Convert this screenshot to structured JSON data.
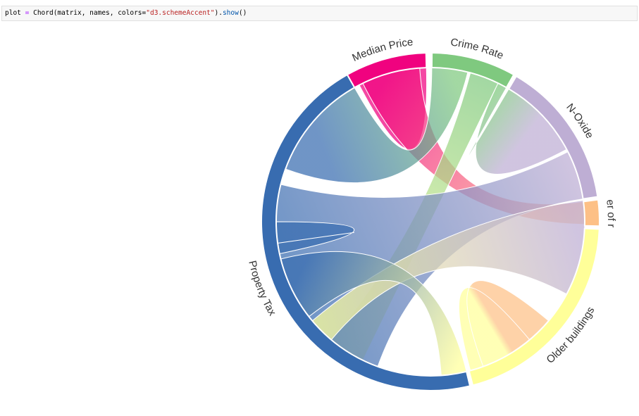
{
  "code_cell": {
    "var": "plot",
    "op": "=",
    "call": "Chord(matrix, names, colors=",
    "string": "\"d3.schemeAccent\"",
    "close": ")",
    "dot": ".",
    "method": "show",
    "tail": "()"
  },
  "chart_data": {
    "type": "chord",
    "names": [
      "Median Price",
      "Crime Rate",
      "N-Oxide",
      "Number of rooms",
      "Older buildings",
      "Property Tax"
    ],
    "colors": [
      "#f0027f",
      "#7fc97f",
      "#beaed4",
      "#fdc086",
      "#ffff99",
      "#386cb0"
    ],
    "groups_start_deg": [
      -29.5,
      0.5,
      30.5,
      82.5,
      92.5,
      166.5
    ],
    "groups_end_deg": [
      -1.5,
      29.5,
      81.5,
      91.5,
      165.5,
      330.5
    ],
    "ribbons": [
      {
        "source": "Median Price",
        "target": "Median Price",
        "s_deg": [
          -27.5,
          -1.5
        ],
        "t_deg": [
          -27.5,
          -1.5
        ]
      },
      {
        "source": "Median Price",
        "target": "Number of rooms",
        "s_deg": [
          -26,
          -4
        ],
        "t_deg": [
          82.5,
          91
        ]
      },
      {
        "source": "Crime Rate",
        "target": "Property Tax",
        "s_deg": [
          0.5,
          14
        ],
        "t_deg": [
          290,
          330.5
        ]
      },
      {
        "source": "Crime Rate",
        "target": "Older buildings",
        "s_deg": [
          15,
          26
        ],
        "t_deg": [
          206,
          220
        ]
      },
      {
        "source": "Crime Rate",
        "target": "N-Oxide",
        "s_deg": [
          26,
          29.5
        ],
        "t_deg": [
          30.5,
          62
        ]
      },
      {
        "source": "N-Oxide",
        "target": "Property Tax",
        "s_deg": [
          63,
          81.5
        ],
        "t_deg": [
          200,
          284
        ]
      },
      {
        "source": "N-Oxide",
        "target": "Older buildings",
        "s_deg": [
          82,
          118
        ],
        "t_deg": [
          220,
          230
        ]
      },
      {
        "source": "Number of rooms",
        "target": "Older buildings",
        "s_deg": [
          130,
          165
        ],
        "t_deg": [
          140,
          160
        ]
      },
      {
        "source": "Older buildings",
        "target": "Property Tax",
        "s_deg": [
          166.5,
          176
        ],
        "t_deg": [
          232,
          256
        ]
      },
      {
        "source": "Property Tax",
        "target": "Property Tax",
        "s_deg": [
          258,
          262
        ],
        "t_deg": [
          262,
          270
        ]
      }
    ]
  }
}
